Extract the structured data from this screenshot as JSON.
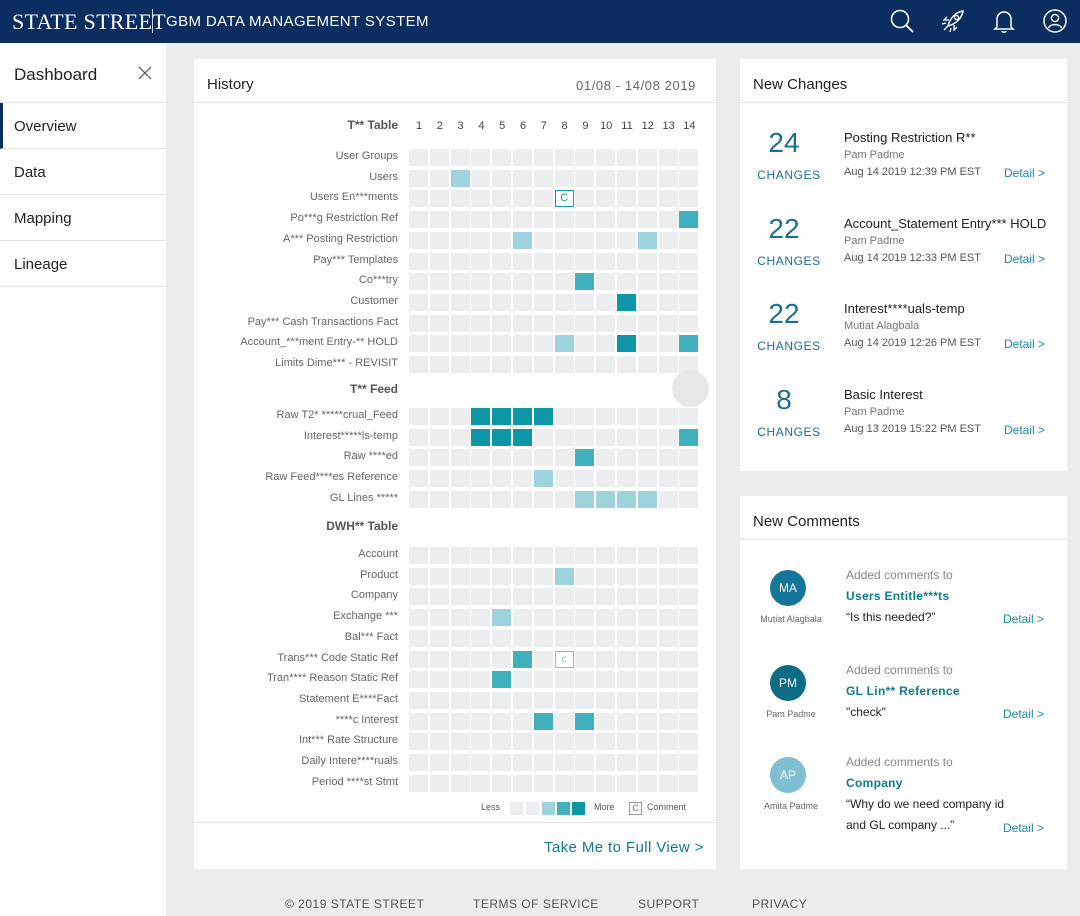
{
  "brand": {
    "logo": "STATE STREET",
    "app_title": "GBM DATA MANAGEMENT SYSTEM"
  },
  "topbar_icons": [
    "search-icon",
    "rocket-icon",
    "bell-icon",
    "user-icon"
  ],
  "sidebar": {
    "title": "Dashboard",
    "items": [
      {
        "label": "Overview"
      },
      {
        "label": "Data"
      },
      {
        "label": "Mapping"
      },
      {
        "label": "Lineage"
      }
    ]
  },
  "history": {
    "title": "History",
    "date_range": "01/08 - 14/08 2019",
    "columns": [
      "1",
      "2",
      "3",
      "4",
      "5",
      "6",
      "7",
      "8",
      "9",
      "10",
      "11",
      "12",
      "13",
      "14"
    ],
    "sections": [
      {
        "title": "T** Table",
        "rows": [
          {
            "label": "User Groups",
            "cells": [
              0,
              0,
              0,
              0,
              0,
              0,
              0,
              0,
              0,
              0,
              0,
              0,
              0,
              0
            ]
          },
          {
            "label": "Users",
            "cells": [
              0,
              0,
              1,
              0,
              0,
              0,
              0,
              0,
              0,
              0,
              0,
              0,
              0,
              0
            ]
          },
          {
            "label": "Users En***ments",
            "cells": [
              0,
              0,
              0,
              0,
              0,
              0,
              0,
              "C",
              0,
              0,
              0,
              0,
              0,
              0
            ]
          },
          {
            "label": "Po***g Restriction Ref",
            "cells": [
              0,
              0,
              0,
              0,
              0,
              0,
              0,
              0,
              0,
              0,
              0,
              0,
              0,
              2
            ]
          },
          {
            "label": "A*** Posting Restriction",
            "cells": [
              0,
              0,
              0,
              0,
              0,
              1,
              0,
              0,
              0,
              0,
              0,
              1,
              0,
              0
            ]
          },
          {
            "label": "Pay*** Templates",
            "cells": [
              0,
              0,
              0,
              0,
              0,
              0,
              0,
              0,
              0,
              0,
              0,
              0,
              0,
              0
            ]
          },
          {
            "label": "Co***try",
            "cells": [
              0,
              0,
              0,
              0,
              0,
              0,
              0,
              0,
              2,
              0,
              0,
              0,
              0,
              0
            ]
          },
          {
            "label": "Customer",
            "cells": [
              0,
              0,
              0,
              0,
              0,
              0,
              0,
              0,
              0,
              0,
              3,
              0,
              0,
              0
            ]
          },
          {
            "label": "Pay*** Cash Transactions Fact",
            "cells": [
              0,
              0,
              0,
              0,
              0,
              0,
              0,
              0,
              0,
              0,
              0,
              0,
              0,
              0
            ]
          },
          {
            "label": "Account_***ment Entry-** HOLD",
            "cells": [
              0,
              0,
              0,
              0,
              0,
              0,
              0,
              1,
              0,
              0,
              3,
              0,
              0,
              2
            ]
          },
          {
            "label": "Limits Dime*** - REVISIT",
            "cells": [
              0,
              0,
              0,
              0,
              0,
              0,
              0,
              0,
              0,
              0,
              0,
              0,
              0,
              0
            ]
          }
        ]
      },
      {
        "title": "T** Feed",
        "rows": [
          {
            "label": "Raw T2* *****crual_Feed",
            "cells": [
              0,
              0,
              0,
              3,
              3,
              3,
              3,
              0,
              0,
              0,
              0,
              0,
              0,
              0
            ]
          },
          {
            "label": "Interest*****ls-temp",
            "cells": [
              0,
              0,
              0,
              3,
              3,
              3,
              0,
              0,
              0,
              0,
              0,
              0,
              0,
              2
            ]
          },
          {
            "label": "Raw ****ed",
            "cells": [
              0,
              0,
              0,
              0,
              0,
              0,
              0,
              0,
              2,
              0,
              0,
              0,
              0,
              0
            ]
          },
          {
            "label": "Raw Feed****es Reference",
            "cells": [
              0,
              0,
              0,
              0,
              0,
              0,
              1,
              0,
              0,
              0,
              0,
              0,
              0,
              0
            ]
          },
          {
            "label": "GL Lines *****",
            "cells": [
              0,
              0,
              0,
              0,
              0,
              0,
              0,
              0,
              1,
              1,
              1,
              1,
              0,
              0
            ]
          }
        ]
      },
      {
        "title": "DWH** Table",
        "rows": [
          {
            "label": "Account",
            "cells": [
              0,
              0,
              0,
              0,
              0,
              0,
              0,
              0,
              0,
              0,
              0,
              0,
              0,
              0
            ]
          },
          {
            "label": "Product",
            "cells": [
              0,
              0,
              0,
              0,
              0,
              0,
              0,
              1,
              0,
              0,
              0,
              0,
              0,
              0
            ]
          },
          {
            "label": "Company",
            "cells": [
              0,
              0,
              0,
              0,
              0,
              0,
              0,
              0,
              0,
              0,
              0,
              0,
              0,
              0
            ]
          },
          {
            "label": "Exchange ***",
            "cells": [
              0,
              0,
              0,
              0,
              1,
              0,
              0,
              0,
              0,
              0,
              0,
              0,
              0,
              0
            ]
          },
          {
            "label": "Bal*** Fact",
            "cells": [
              0,
              0,
              0,
              0,
              0,
              0,
              0,
              0,
              0,
              0,
              0,
              0,
              0,
              0
            ]
          },
          {
            "label": "Trans*** Code Static Ref",
            "cells": [
              0,
              0,
              0,
              0,
              0,
              2,
              0,
              "c",
              0,
              0,
              0,
              0,
              0,
              0
            ]
          },
          {
            "label": "Tran**** Reason Static Ref",
            "cells": [
              0,
              0,
              0,
              0,
              2,
              0,
              0,
              0,
              0,
              0,
              0,
              0,
              0,
              0
            ]
          },
          {
            "label": "Statement E****Fact",
            "cells": [
              0,
              0,
              0,
              0,
              0,
              0,
              0,
              0,
              0,
              0,
              0,
              0,
              0,
              0
            ]
          },
          {
            "label": "****c Interest",
            "cells": [
              0,
              0,
              0,
              0,
              0,
              0,
              2,
              0,
              2,
              0,
              0,
              0,
              0,
              0
            ]
          },
          {
            "label": "Int*** Rate Structure",
            "cells": [
              0,
              0,
              0,
              0,
              0,
              0,
              0,
              0,
              0,
              0,
              0,
              0,
              0,
              0
            ]
          },
          {
            "label": "Daily Intere****ruals",
            "cells": [
              0,
              0,
              0,
              0,
              0,
              0,
              0,
              0,
              0,
              0,
              0,
              0,
              0,
              0
            ]
          },
          {
            "label": "Period ****st Stmt",
            "cells": [
              0,
              0,
              0,
              0,
              0,
              0,
              0,
              0,
              0,
              0,
              0,
              0,
              0,
              0
            ]
          }
        ]
      }
    ],
    "legend": {
      "less": "Less",
      "more": "More",
      "comment_mark": "C",
      "comment": "Comment"
    },
    "full_view_link": "Take Me to Full View >"
  },
  "new_changes": {
    "title": "New Changes",
    "items": [
      {
        "count": "24",
        "count_label": "CHANGES",
        "title": "Posting Restriction R**",
        "user": "Pam Padme",
        "time": "Aug 14 2019 12:39 PM EST",
        "detail": "Detail >"
      },
      {
        "count": "22",
        "count_label": "CHANGES",
        "title": "Account_Statement Entry*** HOLD",
        "user": "Pam Padme",
        "time": "Aug 14 2019 12:33 PM EST",
        "detail": "Detail >"
      },
      {
        "count": "22",
        "count_label": "CHANGES",
        "title": "Interest****uals-temp",
        "user": "Mutiat Alagbala",
        "time": "Aug 14 2019 12:26 PM EST",
        "detail": "Detail >"
      },
      {
        "count": "8",
        "count_label": "CHANGES",
        "title": "Basic Interest",
        "user": "Pam Padme",
        "time": "Aug 13 2019 15:22 PM EST",
        "detail": "Detail >"
      }
    ]
  },
  "new_comments": {
    "title": "New Comments",
    "items": [
      {
        "initials": "MA",
        "avatar_color": "#13769a",
        "name": "Mutiat Alagbala",
        "added": "Added comments to",
        "target": "Users Entitle***ts",
        "text": "“Is this needed?”",
        "detail": "Detail >"
      },
      {
        "initials": "PM",
        "avatar_color": "#0e6c86",
        "name": "Pam Padme",
        "added": "Added comments to",
        "target": "GL Lin** Reference",
        "text": "\"check\"",
        "detail": "Detail >"
      },
      {
        "initials": "AP",
        "avatar_color": "#7fbfd2",
        "name": "Amita Padme",
        "added": "Added comments to",
        "target": "Company",
        "text": "“Why do we need company id and GL company ...”",
        "detail": "Detail >"
      }
    ]
  },
  "footer": {
    "copyright": "©  2019 STATE STREET",
    "terms": "TERMS OF SERVICE",
    "support": "SUPPORT",
    "privacy": "PRIVACY"
  }
}
